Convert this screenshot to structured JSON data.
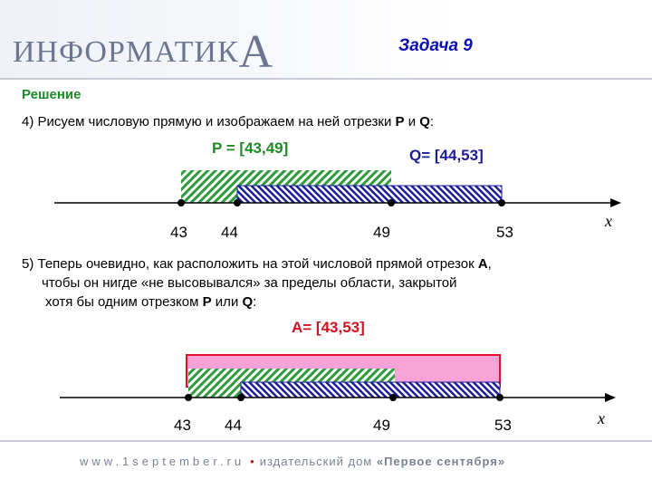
{
  "header": {
    "logo_main": "ИНФОРМАТИК",
    "logo_last": "А",
    "title": "Задача 9"
  },
  "solution": {
    "heading": "Решение",
    "step4_prefix": "4) Рисуем числовую прямую и изображаем на ней отрезки ",
    "step4_p": "P",
    "step4_and": " и ",
    "step4_q": "Q",
    "step4_suffix": ":",
    "p_label": "P = [43,49]",
    "q_label": "Q= [44,53]",
    "step5_line1_prefix": "5) Теперь очевидно, как расположить на этой числовой прямой отрезок ",
    "step5_line1_a": "A",
    "step5_line1_suffix": ",",
    "step5_line2": "чтобы он нигде «не высовывался» за пределы области, закрытой",
    "step5_line3_prefix": "хотя бы одним отрезком ",
    "step5_line3_p": "P",
    "step5_line3_or": " или ",
    "step5_line3_q": "Q",
    "step5_line3_suffix": ":",
    "a_label": "A= [43,53]"
  },
  "number_line_1": {
    "ticks": [
      "43",
      "44",
      "49",
      "53"
    ],
    "axis": "x"
  },
  "number_line_2": {
    "ticks": [
      "43",
      "44",
      "49",
      "53"
    ],
    "axis": "x"
  },
  "colors": {
    "p_segment": "#2e9b3a",
    "q_segment": "#1b1d9a",
    "a_segment": "#e0102a",
    "a_fill": "#f7a3d8",
    "title": "#0b0fb5"
  },
  "footer": {
    "site": "www.1september.ru",
    "separator": "•",
    "publisher": "издательский дом ",
    "brand": "«Первое сентября»"
  }
}
